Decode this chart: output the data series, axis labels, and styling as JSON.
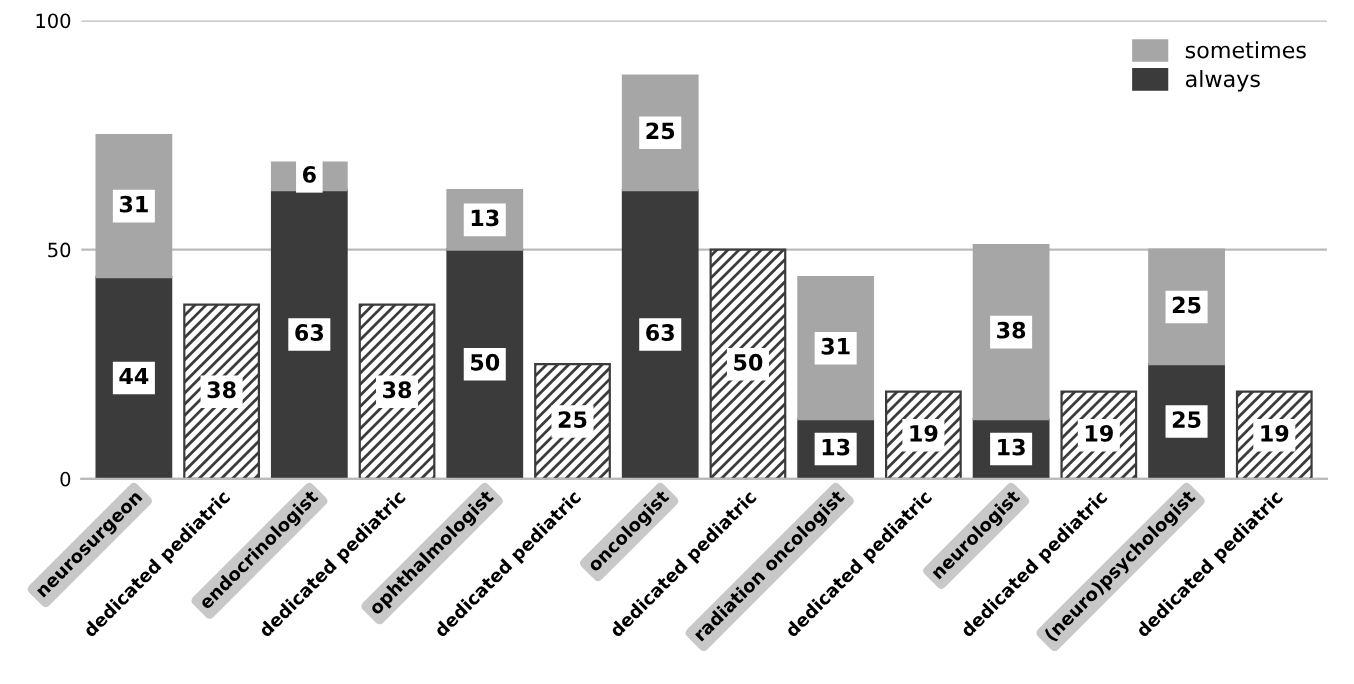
{
  "chart_data": {
    "type": "bar",
    "stacked": true,
    "categories": [
      "neurosurgeon",
      "dedicated pediatric",
      "endocrinologist",
      "dedicated pediatric",
      "ophthalmologist",
      "dedicated pediatric",
      "oncologist",
      "dedicated pediatric",
      "radiation oncologist",
      "dedicated pediatric",
      "neurologist",
      "dedicated pediatric",
      "(neuro)psychologist",
      "dedicated pediatric"
    ],
    "series": [
      {
        "name": "always",
        "color": "#3b3b3b",
        "values": [
          44,
          null,
          63,
          null,
          50,
          null,
          63,
          null,
          13,
          null,
          13,
          null,
          25,
          null
        ]
      },
      {
        "name": "sometimes",
        "color": "#a6a6a6",
        "values": [
          31,
          null,
          6,
          null,
          13,
          null,
          25,
          null,
          31,
          null,
          38,
          null,
          25,
          null
        ]
      },
      {
        "color": "#3b3b3b",
        "values": [
          null,
          38,
          null,
          38,
          null,
          25,
          null,
          50,
          null,
          19,
          null,
          19,
          null,
          19
        ]
      }
    ],
    "ylim": [
      0,
      100
    ],
    "yticks": [
      0,
      50,
      100
    ],
    "grid": "y",
    "legend": "top right",
    "data_labels": true
  }
}
